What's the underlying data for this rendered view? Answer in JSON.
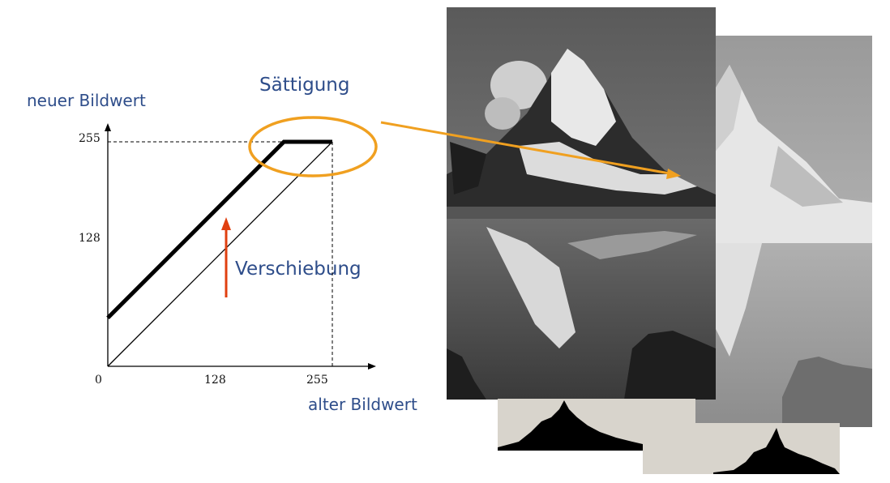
{
  "diagram": {
    "y_axis_label": "neuer Bildwert",
    "x_axis_label": "alter Bildwert",
    "saturation_label": "Sättigung",
    "shift_label": "Verschiebung",
    "ticks": {
      "origin": "0",
      "mid_x": "128",
      "max_x": "255",
      "mid_y": "128",
      "max_y": "255"
    },
    "colors": {
      "text": "#2e4d8a",
      "highlight": "#f0a020",
      "arrow": "#e04010",
      "curve": "#000000"
    }
  },
  "chart_data": {
    "type": "line",
    "xlim": [
      0,
      255
    ],
    "ylim": [
      0,
      255
    ],
    "series": [
      {
        "x": [
          0,
          255
        ],
        "y": [
          0,
          255
        ]
      },
      {
        "x": [
          0,
          200,
          255
        ],
        "y": [
          55,
          255,
          255
        ]
      }
    ]
  },
  "images": [
    {
      "name": "matterhorn-original",
      "histogram": "left-weighted"
    },
    {
      "name": "matterhorn-brightened",
      "histogram": "right-shifted"
    }
  ]
}
